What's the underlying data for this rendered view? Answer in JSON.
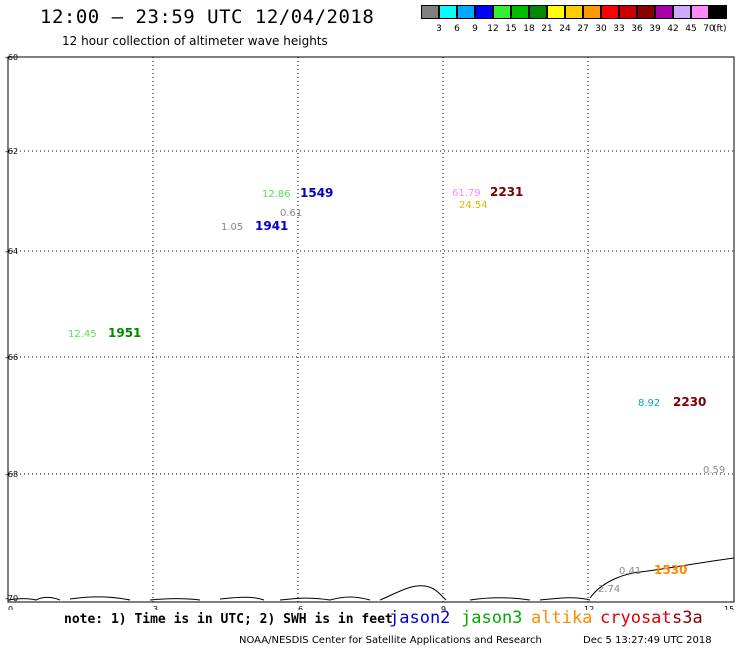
{
  "header": {
    "title": "12:00 – 23:59 UTC 12/04/2018",
    "subtitle": "12 hour collection of altimeter wave heights"
  },
  "colorbar": {
    "unit": "(ft)",
    "swatches": [
      {
        "color": "#808080",
        "label": "3"
      },
      {
        "color": "#00ffff",
        "label": "6"
      },
      {
        "color": "#00aaff",
        "label": "9"
      },
      {
        "color": "#0000ff",
        "label": "12"
      },
      {
        "color": "#33ee33",
        "label": "15"
      },
      {
        "color": "#00bb00",
        "label": "18"
      },
      {
        "color": "#008800",
        "label": "21"
      },
      {
        "color": "#ffff00",
        "label": "24"
      },
      {
        "color": "#ffcc00",
        "label": "27"
      },
      {
        "color": "#ff9900",
        "label": "30"
      },
      {
        "color": "#ff0000",
        "label": "33"
      },
      {
        "color": "#cc0000",
        "label": "36"
      },
      {
        "color": "#880000",
        "label": "39"
      },
      {
        "color": "#aa00aa",
        "label": "42"
      },
      {
        "color": "#ccaaff",
        "label": "45"
      },
      {
        "color": "#ff88ff",
        "label": "70"
      },
      {
        "color": "#000000",
        "label": ""
      }
    ]
  },
  "axes": {
    "x_ticks": [
      "0",
      "3",
      "6",
      "9",
      "12",
      "15"
    ],
    "y_ticks": [
      "-60",
      "-62",
      "-64",
      "-66",
      "-68",
      "-70"
    ]
  },
  "observations": [
    {
      "wave_height": "12.86",
      "wave_color": "#55dd55",
      "time": "1549",
      "time_color": "#0000cc"
    },
    {
      "wave_height": "0.61",
      "wave_color": "#888888",
      "time": "",
      "time_color": "#000000"
    },
    {
      "wave_height": "1.05",
      "wave_color": "#888888",
      "time": "1941",
      "time_color": "#0000cc"
    },
    {
      "wave_height": "61.79",
      "wave_color": "#ff88ff",
      "time": "2231",
      "time_color": "#770000"
    },
    {
      "wave_height": "24.54",
      "wave_color": "#ddbb00",
      "time": "",
      "time_color": "#000000"
    },
    {
      "wave_height": "12.45",
      "wave_color": "#55dd55",
      "time": "1951",
      "time_color": "#008800"
    },
    {
      "wave_height": "8.92",
      "wave_color": "#00aacc",
      "time": "2230",
      "time_color": "#770000"
    },
    {
      "wave_height": "0.59",
      "wave_color": "#888888",
      "time": "",
      "time_color": "#000000"
    },
    {
      "wave_height": "0.41",
      "wave_color": "#888888",
      "time": "1530",
      "time_color": "#ff8800"
    },
    {
      "wave_height": "2.74",
      "wave_color": "#888888",
      "time": "",
      "time_color": "#000000"
    }
  ],
  "footer": {
    "note": "note: 1) Time is in UTC; 2) SWH is in feet",
    "legend": [
      {
        "name": "jason2",
        "color": "#0000dd"
      },
      {
        "name": "jason3",
        "color": "#00aa00"
      },
      {
        "name": "altika",
        "color": "#ff8800"
      },
      {
        "name": "cryosat",
        "color": "#dd0000"
      },
      {
        "name": "s3a",
        "color": "#880000"
      }
    ],
    "credit": "NOAA/NESDIS Center for Satellite Applications and Research",
    "timestamp": "Dec  5 13:27:49 UTC 2018"
  }
}
